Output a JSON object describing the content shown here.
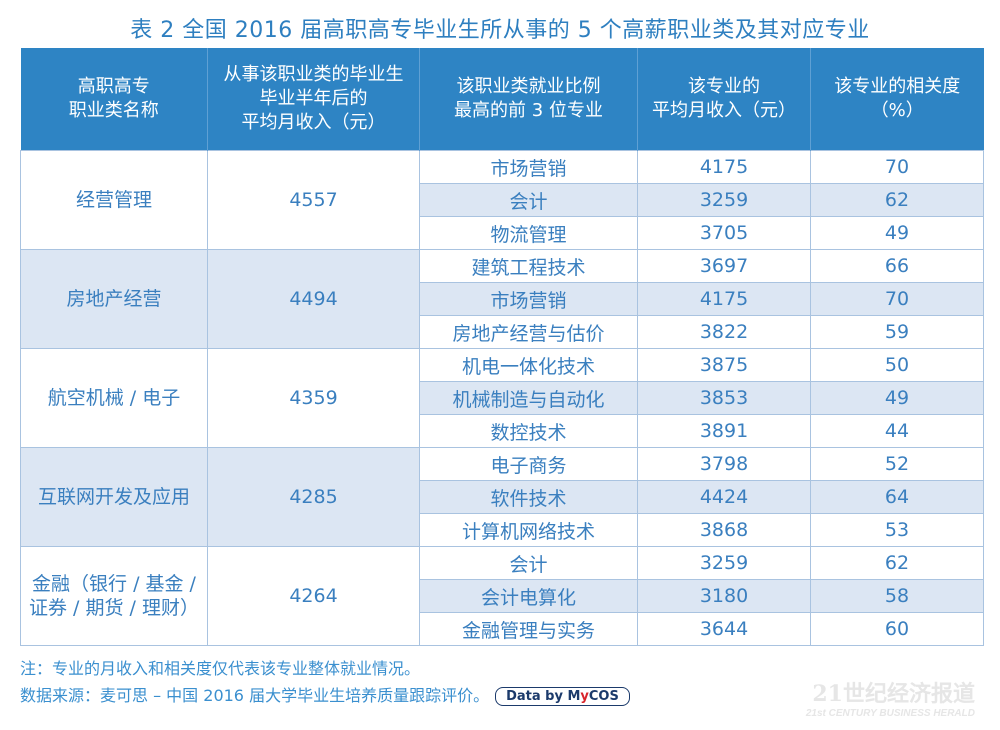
{
  "title": "表 2  全国 2016 届高职高专毕业生所从事的 5 个高薪职业类及其对应专业",
  "headers": [
    "高职高专\n职业类名称",
    "从事该职业类的毕业生\n毕业半年后的\n平均月收入（元）",
    "该职业类就业比例\n最高的前 3 位专业",
    "该专业的\n平均月收入（元）",
    "该专业的相关度\n（%）"
  ],
  "groups": [
    {
      "name": "经营管理",
      "income": "4557",
      "majors": [
        {
          "major": "市场营销",
          "income": "4175",
          "relevance": "70"
        },
        {
          "major": "会计",
          "income": "3259",
          "relevance": "62"
        },
        {
          "major": "物流管理",
          "income": "3705",
          "relevance": "49"
        }
      ]
    },
    {
      "name": "房地产经营",
      "income": "4494",
      "majors": [
        {
          "major": "建筑工程技术",
          "income": "3697",
          "relevance": "66"
        },
        {
          "major": "市场营销",
          "income": "4175",
          "relevance": "70"
        },
        {
          "major": "房地产经营与估价",
          "income": "3822",
          "relevance": "59"
        }
      ]
    },
    {
      "name": "航空机械 / 电子",
      "income": "4359",
      "majors": [
        {
          "major": "机电一体化技术",
          "income": "3875",
          "relevance": "50"
        },
        {
          "major": "机械制造与自动化",
          "income": "3853",
          "relevance": "49"
        },
        {
          "major": "数控技术",
          "income": "3891",
          "relevance": "44"
        }
      ]
    },
    {
      "name": "互联网开发及应用",
      "income": "4285",
      "majors": [
        {
          "major": "电子商务",
          "income": "3798",
          "relevance": "52"
        },
        {
          "major": "软件技术",
          "income": "4424",
          "relevance": "64"
        },
        {
          "major": "计算机网络技术",
          "income": "3868",
          "relevance": "53"
        }
      ]
    },
    {
      "name": "金融（银行 / 基金 /\n证券 / 期货 / 理财）",
      "income": "4264",
      "majors": [
        {
          "major": "会计",
          "income": "3259",
          "relevance": "62"
        },
        {
          "major": "会计电算化",
          "income": "3180",
          "relevance": "58"
        },
        {
          "major": "金融管理与实务",
          "income": "3644",
          "relevance": "60"
        }
      ]
    }
  ],
  "footer": {
    "note": "注：专业的月收入和相关度仅代表该专业整体就业情况。",
    "source": "数据来源：麦可思 – 中国 2016 届大学毕业生培养质量跟踪评价。",
    "badge_prefix": "Data by ",
    "badge_m": "M",
    "badge_y": "y",
    "badge_suffix": "COS"
  },
  "watermark": {
    "cn": "21世纪经济报道",
    "en": "21st CENTURY BUSINESS HERALD"
  },
  "colors": {
    "header_bg": "#2e84c4",
    "stripe": "#dce6f3",
    "text": "#3a7fbf"
  }
}
